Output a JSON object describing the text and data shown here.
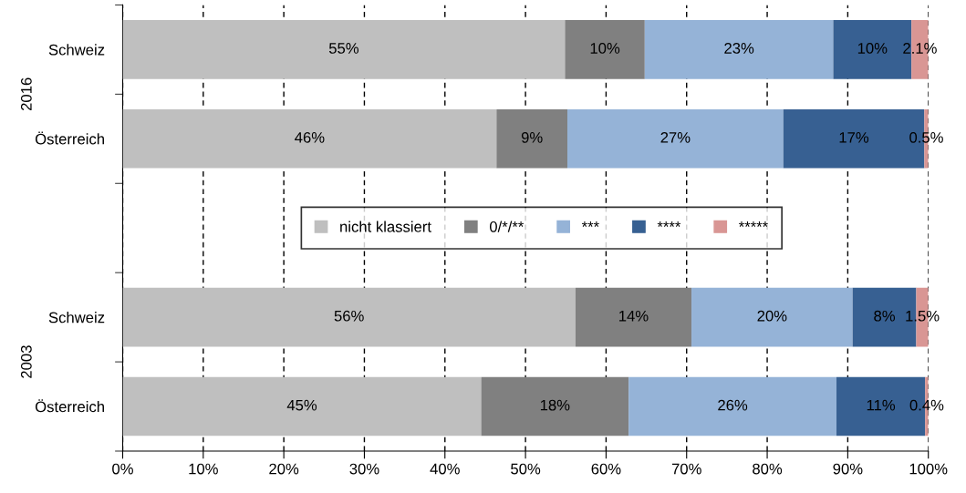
{
  "chart_data": {
    "type": "bar",
    "orientation": "horizontal",
    "stacked": true,
    "categories": [
      "Schweiz",
      "Österreich",
      null,
      "Schweiz",
      "Österreich"
    ],
    "series": [
      {
        "name": "nicht klassiert",
        "color": "#bfbfbf",
        "values": [
          54.9,
          46.4,
          null,
          56.2,
          44.5
        ],
        "value_labels": [
          "55%",
          "46%",
          null,
          "56%",
          "45%"
        ]
      },
      {
        "name": "0/*/**",
        "color": "#808080",
        "values": [
          9.9,
          8.8,
          null,
          14.4,
          18.3
        ],
        "value_labels": [
          "10%",
          "9%",
          null,
          "14%",
          "18%"
        ]
      },
      {
        "name": "***",
        "color": "#95b3d7",
        "values": [
          23.4,
          26.8,
          null,
          20.0,
          25.8
        ],
        "value_labels": [
          "23%",
          "27%",
          null,
          "20%",
          "26%"
        ]
      },
      {
        "name": "****",
        "color": "#376092",
        "values": [
          9.7,
          17.5,
          null,
          7.9,
          11.0
        ],
        "value_labels": [
          "10%",
          "17%",
          null,
          "8%",
          "11%"
        ]
      },
      {
        "name": "*****",
        "color": "#d99694",
        "values": [
          2.1,
          0.5,
          null,
          1.5,
          0.4
        ],
        "value_labels": [
          "2.1%",
          "0.5%",
          null,
          "1.5%",
          "0.4%"
        ]
      }
    ],
    "annotations": [
      "2016",
      "2003"
    ],
    "xlim": [
      0,
      100
    ],
    "xticks": [
      {
        "value": 0,
        "label": "0%"
      },
      {
        "value": 10,
        "label": "10%"
      },
      {
        "value": 20,
        "label": "20%"
      },
      {
        "value": 30,
        "label": "30%"
      },
      {
        "value": 40,
        "label": "40%"
      },
      {
        "value": 50,
        "label": "50%"
      },
      {
        "value": 60,
        "label": "60%"
      },
      {
        "value": 70,
        "label": "70%"
      },
      {
        "value": 80,
        "label": "80%"
      },
      {
        "value": 90,
        "label": "90%"
      },
      {
        "value": 100,
        "label": "100%"
      }
    ],
    "grid": "x",
    "legend": "center"
  }
}
